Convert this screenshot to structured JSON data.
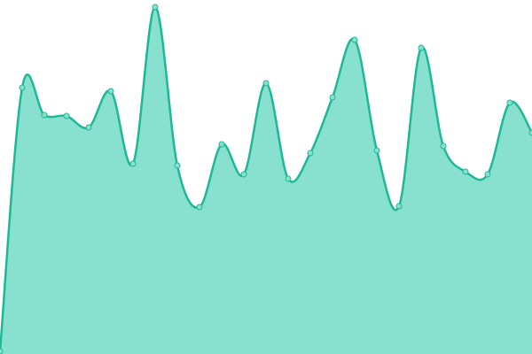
{
  "chart_data": {
    "type": "area",
    "categories": [
      null,
      null,
      null,
      null,
      null,
      null,
      null,
      null,
      null,
      null,
      null,
      null,
      null,
      null,
      null,
      null,
      null,
      null,
      null,
      null,
      null,
      null,
      null,
      null,
      null
    ],
    "values": [
      3,
      301,
      270,
      269,
      256,
      297,
      215,
      392,
      213,
      166,
      237,
      203,
      306,
      198,
      227,
      290,
      355,
      230,
      167,
      346,
      235,
      206,
      203,
      284,
      250
    ],
    "color": "#1fb896",
    "fill_color": "#88e0cf",
    "ylim": [
      0,
      400
    ],
    "grid": false
  }
}
